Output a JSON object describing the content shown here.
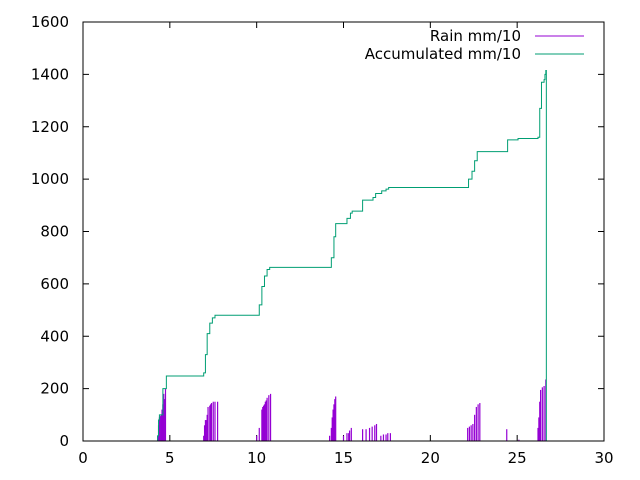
{
  "chart_data": {
    "type": "line",
    "title": "",
    "xlabel": "",
    "ylabel": "",
    "xlim": [
      0,
      30
    ],
    "ylim": [
      0,
      1600
    ],
    "xticks": [
      0,
      5,
      10,
      15,
      20,
      25,
      30
    ],
    "yticks": [
      0,
      200,
      400,
      600,
      800,
      1000,
      1200,
      1400,
      1600
    ],
    "grid": false,
    "legend_position": "top-right",
    "series": [
      {
        "name": "Rain mm/10",
        "style": "impulses",
        "color": "#9400d3",
        "points": [
          [
            4.3,
            20
          ],
          [
            4.35,
            60
          ],
          [
            4.4,
            90
          ],
          [
            4.45,
            95
          ],
          [
            4.5,
            100
          ],
          [
            4.55,
            120
          ],
          [
            4.6,
            140
          ],
          [
            4.65,
            180
          ],
          [
            4.7,
            160
          ],
          [
            4.75,
            200
          ],
          [
            6.95,
            20
          ],
          [
            7.0,
            60
          ],
          [
            7.05,
            80
          ],
          [
            7.1,
            80
          ],
          [
            7.15,
            100
          ],
          [
            7.2,
            130
          ],
          [
            7.3,
            135
          ],
          [
            7.35,
            140
          ],
          [
            7.4,
            145
          ],
          [
            7.5,
            150
          ],
          [
            7.6,
            150
          ],
          [
            7.75,
            150
          ],
          [
            10.0,
            20
          ],
          [
            10.15,
            50
          ],
          [
            10.3,
            120
          ],
          [
            10.35,
            130
          ],
          [
            10.4,
            135
          ],
          [
            10.45,
            140
          ],
          [
            10.5,
            150
          ],
          [
            10.55,
            155
          ],
          [
            10.6,
            165
          ],
          [
            10.7,
            175
          ],
          [
            10.8,
            180
          ],
          [
            14.2,
            20
          ],
          [
            14.3,
            50
          ],
          [
            14.35,
            90
          ],
          [
            14.4,
            120
          ],
          [
            14.45,
            140
          ],
          [
            14.5,
            160
          ],
          [
            14.55,
            170
          ],
          [
            15.0,
            20
          ],
          [
            15.2,
            30
          ],
          [
            15.3,
            30
          ],
          [
            15.35,
            40
          ],
          [
            15.45,
            50
          ],
          [
            16.1,
            45
          ],
          [
            16.3,
            45
          ],
          [
            16.5,
            50
          ],
          [
            16.65,
            55
          ],
          [
            16.8,
            60
          ],
          [
            16.9,
            65
          ],
          [
            17.15,
            20
          ],
          [
            17.3,
            25
          ],
          [
            17.45,
            25
          ],
          [
            17.55,
            30
          ],
          [
            17.7,
            30
          ],
          [
            22.15,
            50
          ],
          [
            22.25,
            55
          ],
          [
            22.35,
            60
          ],
          [
            22.45,
            65
          ],
          [
            22.55,
            100
          ],
          [
            22.65,
            130
          ],
          [
            22.75,
            140
          ],
          [
            22.85,
            145
          ],
          [
            24.4,
            45
          ],
          [
            25.1,
            5
          ],
          [
            26.2,
            50
          ],
          [
            26.25,
            90
          ],
          [
            26.3,
            150
          ],
          [
            26.35,
            195
          ],
          [
            26.45,
            205
          ],
          [
            26.55,
            210
          ],
          [
            26.65,
            235
          ]
        ]
      },
      {
        "name": "Accumulated mm/10",
        "style": "steps",
        "color": "#009e73",
        "points": [
          [
            0,
            0
          ],
          [
            4.2,
            0
          ],
          [
            4.3,
            20
          ],
          [
            4.35,
            80
          ],
          [
            4.4,
            100
          ],
          [
            4.6,
            200
          ],
          [
            4.75,
            200
          ],
          [
            4.8,
            248
          ],
          [
            6.9,
            248
          ],
          [
            6.95,
            260
          ],
          [
            7.05,
            330
          ],
          [
            7.15,
            410
          ],
          [
            7.3,
            450
          ],
          [
            7.45,
            470
          ],
          [
            7.6,
            480
          ],
          [
            10.0,
            480
          ],
          [
            10.15,
            520
          ],
          [
            10.3,
            590
          ],
          [
            10.45,
            630
          ],
          [
            10.6,
            655
          ],
          [
            10.75,
            663
          ],
          [
            14.2,
            663
          ],
          [
            14.3,
            700
          ],
          [
            14.45,
            780
          ],
          [
            14.55,
            830
          ],
          [
            15.1,
            830
          ],
          [
            15.2,
            850
          ],
          [
            15.4,
            870
          ],
          [
            15.5,
            878
          ],
          [
            16.05,
            878
          ],
          [
            16.1,
            920
          ],
          [
            16.6,
            920
          ],
          [
            16.7,
            930
          ],
          [
            16.85,
            945
          ],
          [
            17.2,
            955
          ],
          [
            17.45,
            962
          ],
          [
            17.6,
            968
          ],
          [
            22.1,
            968
          ],
          [
            22.2,
            1000
          ],
          [
            22.4,
            1030
          ],
          [
            22.55,
            1070
          ],
          [
            22.7,
            1105
          ],
          [
            24.35,
            1105
          ],
          [
            24.45,
            1150
          ],
          [
            25.05,
            1155
          ],
          [
            26.2,
            1160
          ],
          [
            26.3,
            1270
          ],
          [
            26.4,
            1370
          ],
          [
            26.55,
            1380
          ],
          [
            26.6,
            1400
          ],
          [
            26.65,
            1415
          ],
          [
            26.68,
            0
          ],
          [
            26.7,
            0
          ]
        ]
      }
    ]
  }
}
